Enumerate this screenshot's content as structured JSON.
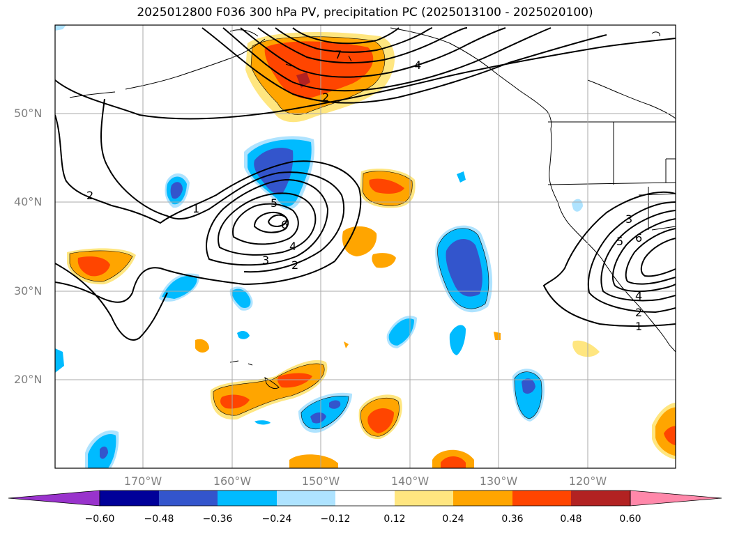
{
  "title": "2025012800 F036 300 hPa PV, precipitation PC (2025013100 - 2025020100)",
  "lat_labels": [
    "50°N",
    "40°N",
    "30°N",
    "20°N"
  ],
  "lon_labels": [
    "170°W",
    "160°W",
    "150°W",
    "140°W",
    "130°W",
    "120°W"
  ],
  "contour_labels": [
    "7",
    "4",
    "2",
    "2",
    "1",
    "5",
    "6",
    "4",
    "3",
    "2",
    "3",
    "5",
    "6",
    "4",
    "2",
    "1"
  ],
  "colorbar": {
    "ticks": [
      "−0.60",
      "−0.48",
      "−0.36",
      "−0.24",
      "−0.12",
      "0.12",
      "0.24",
      "0.36",
      "0.48",
      "0.60"
    ],
    "colors": [
      "#9933cc",
      "#000099",
      "#3355cc",
      "#00bbff",
      "#aee3ff",
      "#ffffff",
      "#ffe680",
      "#ffa500",
      "#ff4500",
      "#b22222",
      "#ff88aa"
    ]
  }
}
